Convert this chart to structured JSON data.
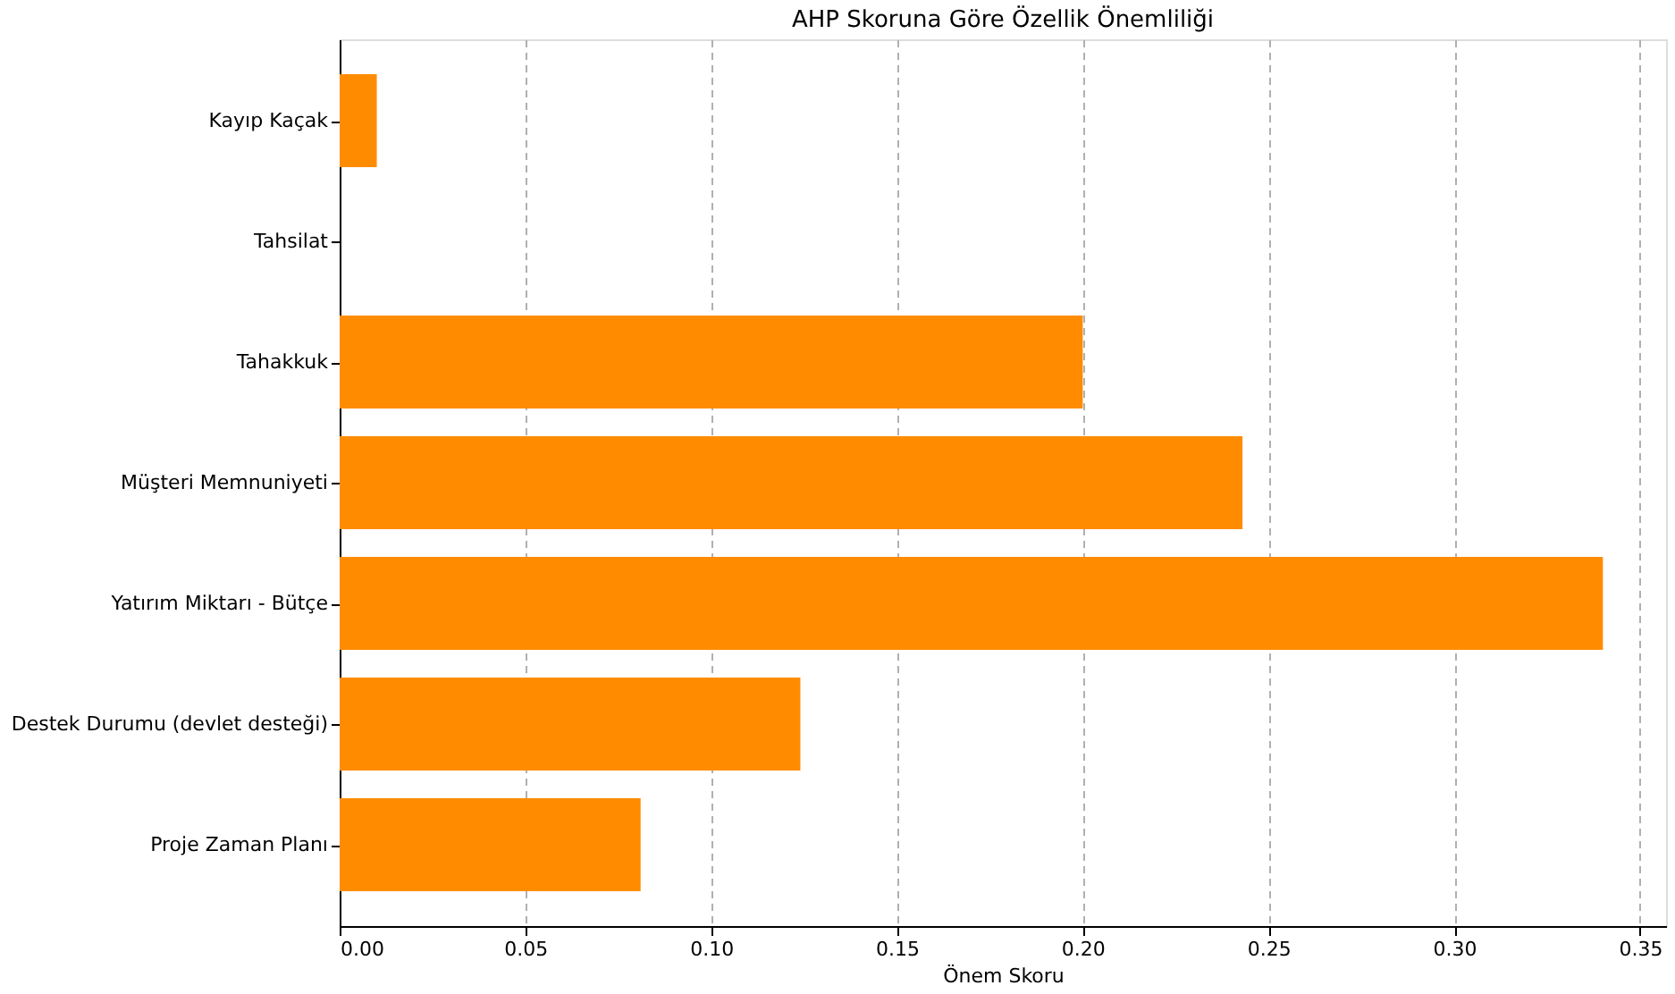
{
  "chart_data": {
    "type": "bar",
    "orientation": "horizontal",
    "title": "AHP Skoruna Göre Özellik Önemliliği",
    "xlabel": "Önem Skoru",
    "categories": [
      "Kayıp Kaçak",
      "Tahsilat",
      "Tahakkuk",
      "Müşteri Memnuniyeti",
      "Yatırım Miktarı - Bütçe",
      "Destek Durumu (devlet desteği)",
      "Proje Zaman Planı"
    ],
    "values": [
      0.01,
      0,
      0.2,
      0.243,
      0.34,
      0.124,
      0.081
    ],
    "color": "#ff8c00",
    "xlim": [
      0,
      0.357
    ],
    "xticks": [
      {
        "value": 0,
        "label": "0.00"
      },
      0.05,
      {
        "value": 0.1,
        "label": "0.10"
      },
      0.15,
      {
        "value": 0.2,
        "label": "0.20"
      },
      0.25,
      {
        "value": 0.3,
        "label": "0.30"
      },
      0.35
    ],
    "grid": "x",
    "line_style": "dashed"
  }
}
